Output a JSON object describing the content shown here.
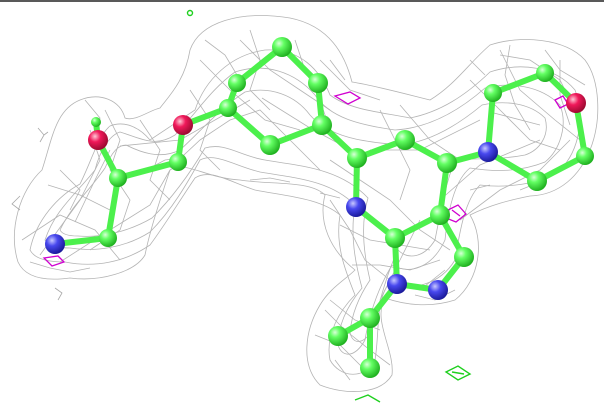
{
  "colors": {
    "background": "#ffffff",
    "top_rule": "#222222",
    "mesh": "#b4b4b4",
    "carbon": "#4cf04c",
    "nitrogen": "#3a3ae0",
    "oxygen": "#e8104a",
    "difference_density": "#d000d0",
    "positive_density": "#1fd01f"
  }
}
